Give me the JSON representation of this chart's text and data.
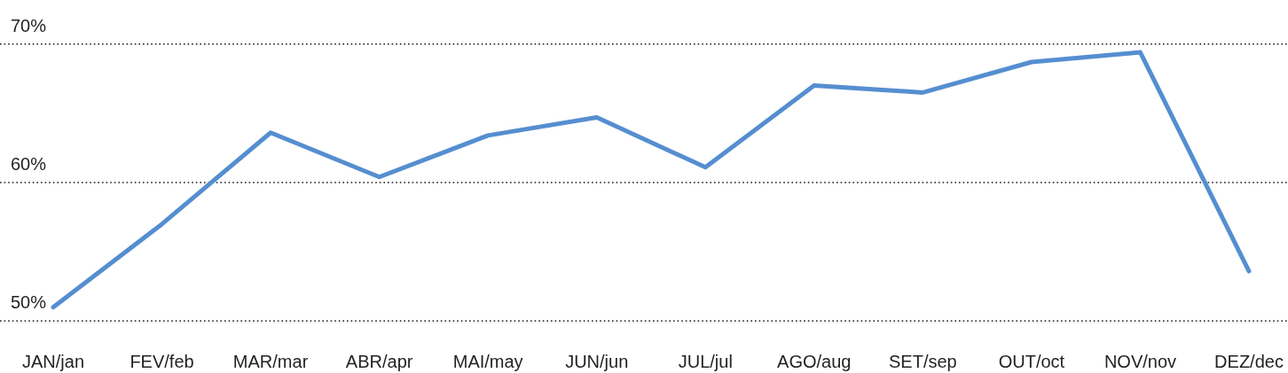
{
  "chart_data": {
    "type": "line",
    "categories": [
      "JAN/jan",
      "FEV/feb",
      "MAR/mar",
      "ABR/apr",
      "MAI/may",
      "JUN/jun",
      "JUL/jul",
      "AGO/aug",
      "SET/sep",
      "OUT/oct",
      "NOV/nov",
      "DEZ/dec"
    ],
    "values": [
      51.0,
      57.0,
      63.6,
      60.4,
      63.4,
      64.7,
      61.1,
      67.0,
      66.5,
      68.7,
      69.4,
      53.6
    ],
    "color": "#558ed0",
    "ylim": [
      50,
      70
    ],
    "yticks": [
      {
        "value": 50,
        "label": "50%"
      },
      {
        "value": 60,
        "label": "60%"
      },
      {
        "value": 70,
        "label": "70%"
      }
    ],
    "grid": "y"
  }
}
